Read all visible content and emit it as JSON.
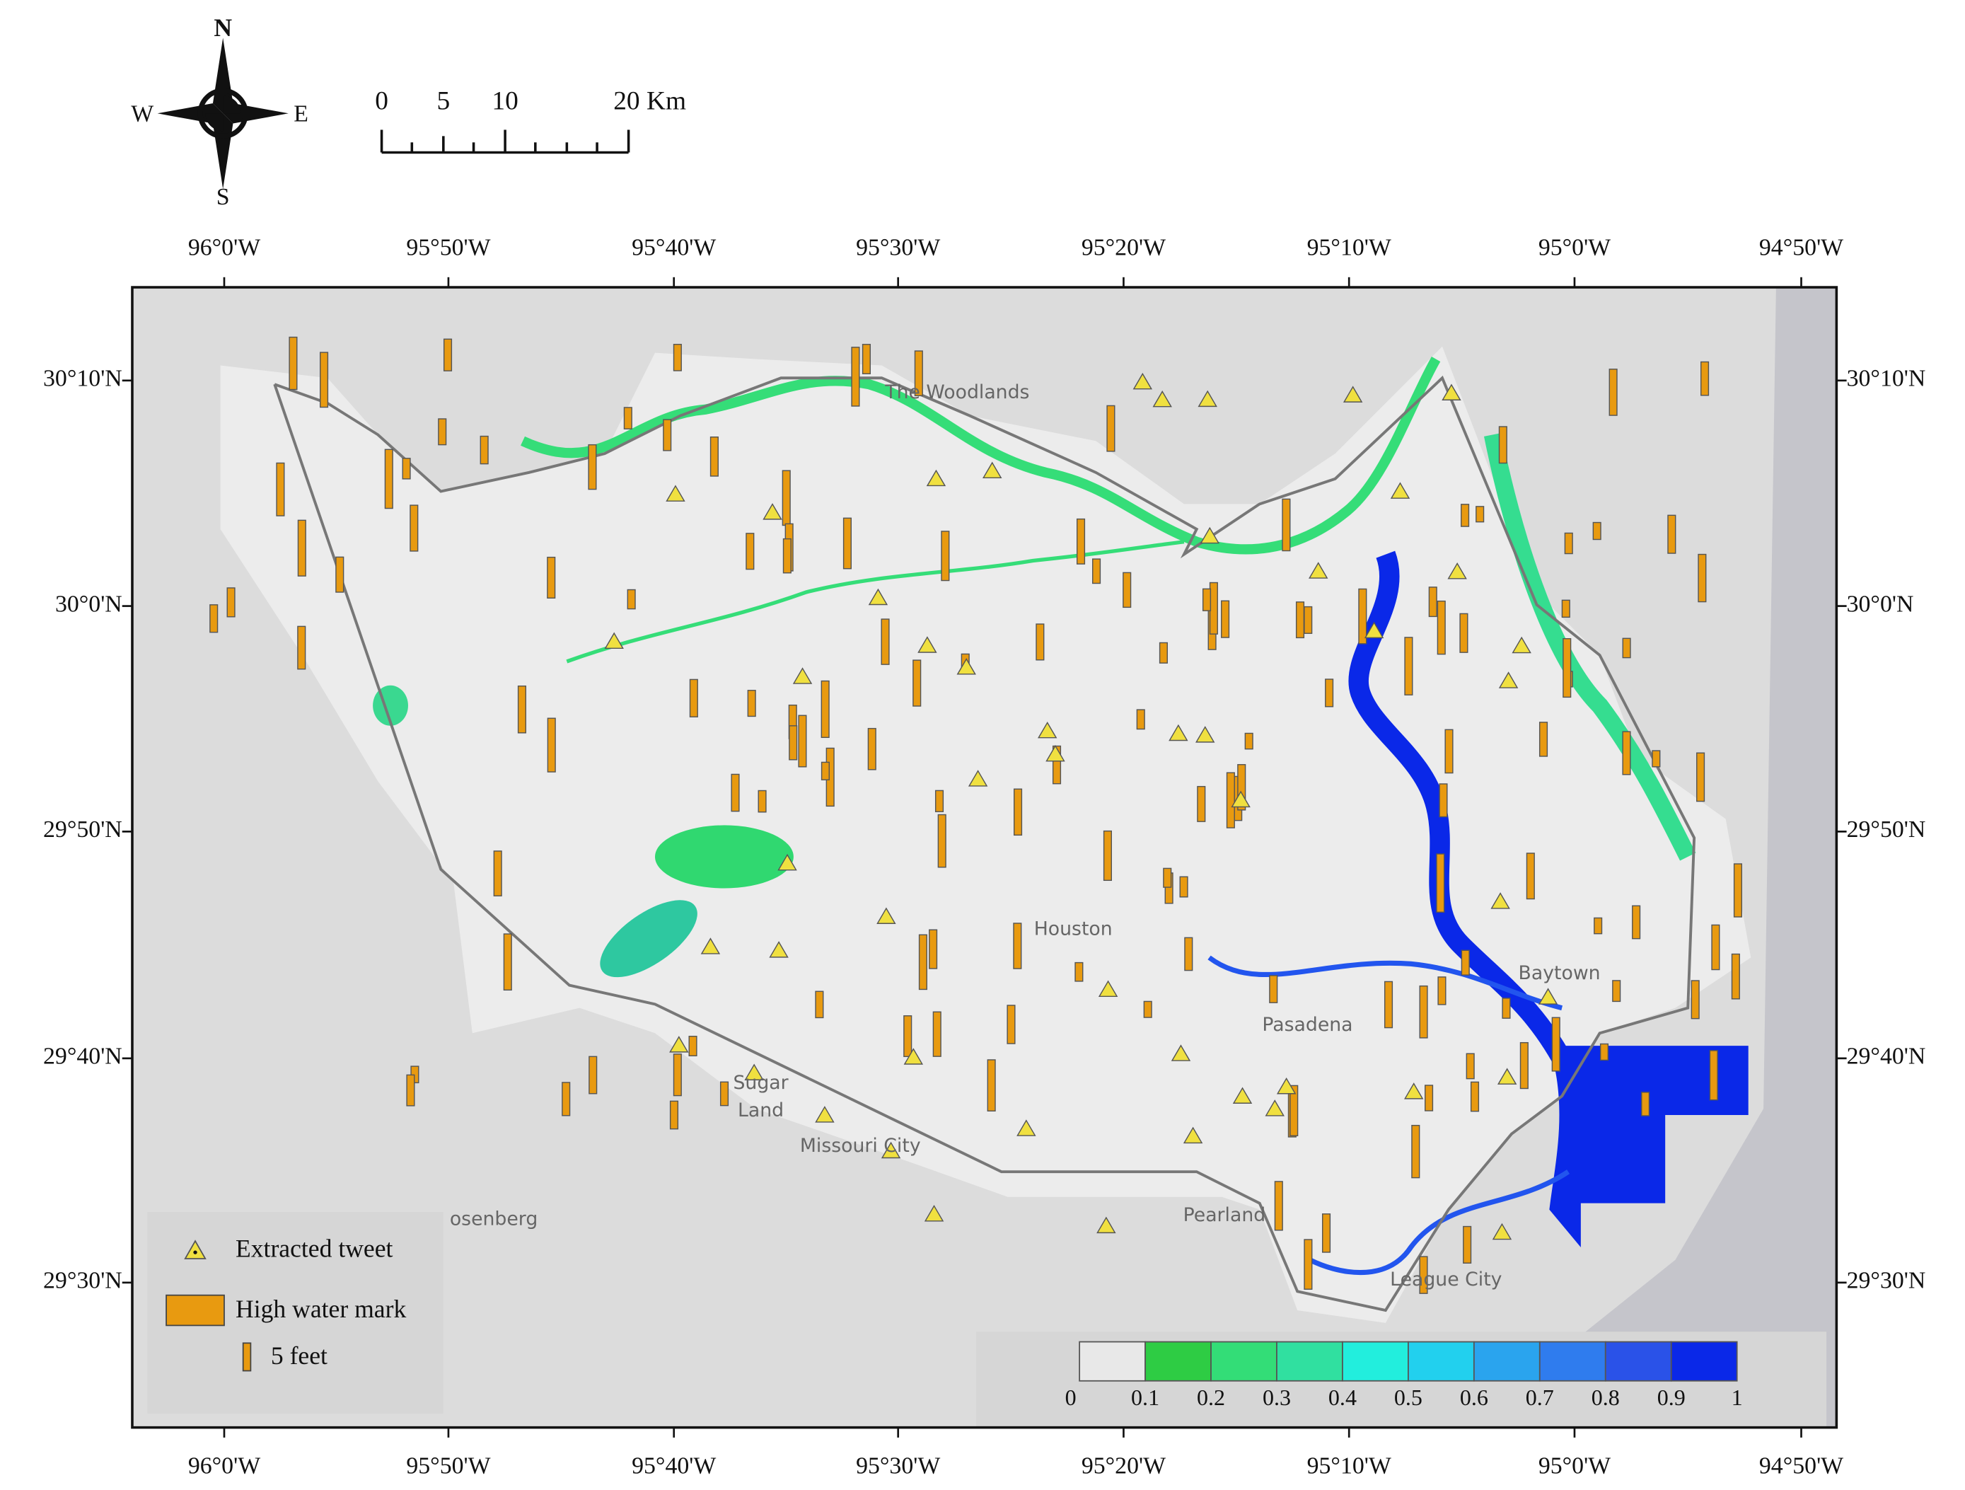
{
  "compass": {
    "north": "N",
    "south": "S",
    "west": "W",
    "east": "E"
  },
  "scale_bar": {
    "labels": [
      "0",
      "5",
      "10",
      "20 Km"
    ]
  },
  "longitude_labels": [
    "96°0'W",
    "95°50'W",
    "95°40'W",
    "95°30'W",
    "95°20'W",
    "95°10'W",
    "95°0'W",
    "94°50'W"
  ],
  "latitude_labels": [
    "30°10'N",
    "30°0'N",
    "29°50'N",
    "29°40'N",
    "29°30'N"
  ],
  "places": [
    "The Woodlands",
    "Houston",
    "Pasadena",
    "Sugar",
    "Land",
    "Missouri City",
    "osenberg",
    "Pearland",
    "Baytown",
    "League City"
  ],
  "legend": {
    "tweet": "Extracted tweet",
    "high_water_mark": "High water mark",
    "bar_size": "5 feet"
  },
  "colorbar": {
    "labels": [
      "0",
      "0.1",
      "0.2",
      "0.3",
      "0.4",
      "0.5",
      "0.6",
      "0.7",
      "0.8",
      "0.9",
      "1"
    ]
  }
}
